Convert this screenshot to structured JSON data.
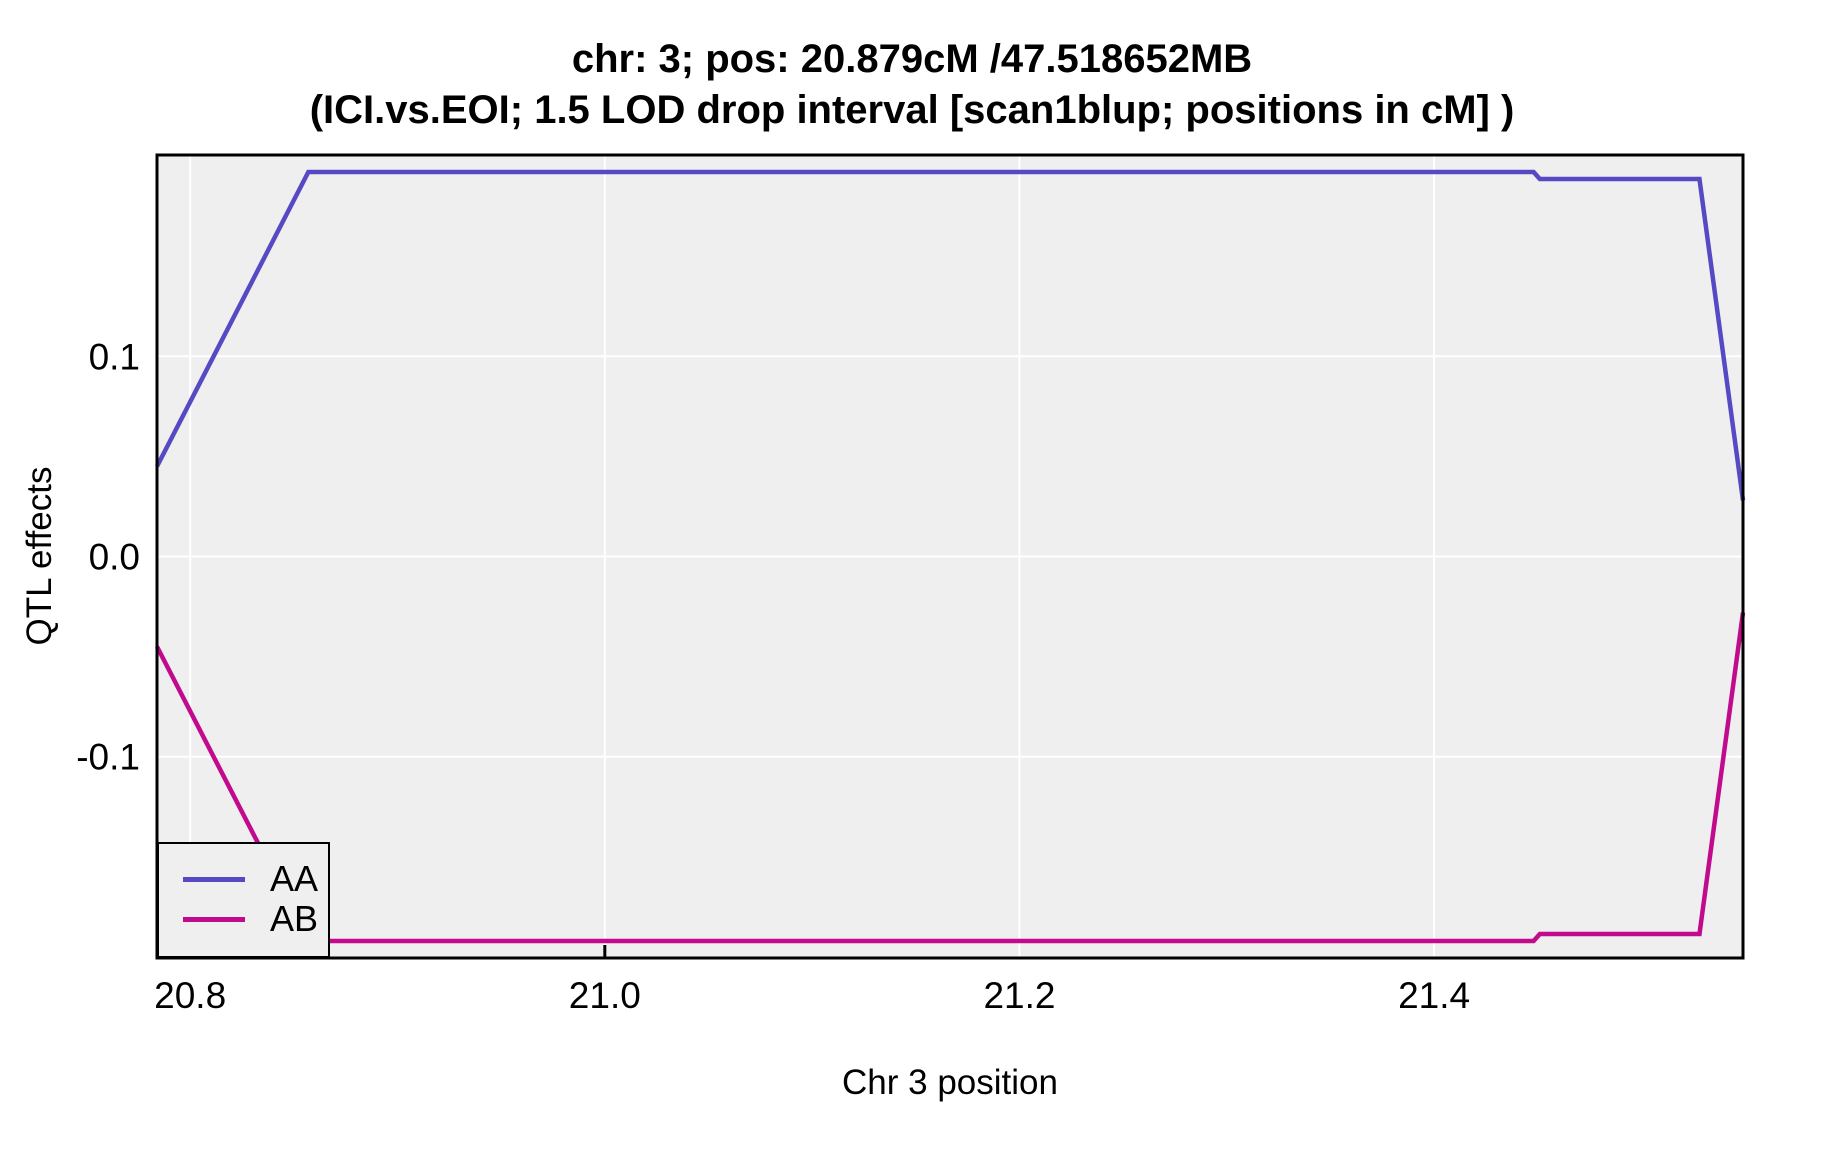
{
  "title": {
    "line1": "chr: 3; pos: 20.879cM /47.518652MB",
    "line2": "(ICI.vs.EOI; 1.5 LOD drop interval [scan1blup; positions in cM] )"
  },
  "axes": {
    "x_label": "Chr 3 position",
    "y_label": "QTL effects"
  },
  "legend": {
    "position": "bottom-left-inside",
    "items": [
      {
        "label": "AA",
        "color": "#564AC4"
      },
      {
        "label": "AB",
        "color": "#C10B8C"
      }
    ]
  },
  "colors": {
    "panel_background": "#EFEFEF",
    "gridline": "#FFFFFF",
    "panel_border": "#000000",
    "tick_text": "#000000",
    "series_AA": "#564AC4",
    "series_AB": "#C10B8C"
  },
  "chart_data": {
    "type": "line",
    "title": "chr: 3; pos: 20.879cM /47.518652MB (ICI.vs.EOI; 1.5 LOD drop interval [scan1blup; positions in cM] )",
    "xlabel": "Chr 3 position",
    "ylabel": "QTL effects",
    "xlim": [
      20.784,
      21.549
    ],
    "ylim": [
      -0.2005,
      0.2005
    ],
    "x_ticks": [
      20.8,
      21.0,
      21.2,
      21.4
    ],
    "x_tick_labels": [
      "20.8",
      "21.0",
      "21.2",
      "21.4"
    ],
    "y_ticks": [
      0.1,
      0.0,
      -0.1
    ],
    "y_tick_labels": [
      "0.1",
      "0.0",
      "-0.1"
    ],
    "grid": "major only, white on gray panel",
    "legend_position": "bottom-left inside panel",
    "marker_rug_x": [
      21.0
    ],
    "series": [
      {
        "name": "AA",
        "color": "#564AC4",
        "x": [
          20.784,
          20.857,
          21.448,
          21.451,
          21.528,
          21.549
        ],
        "y": [
          0.045,
          0.192,
          0.192,
          0.1885,
          0.1885,
          0.028
        ]
      },
      {
        "name": "AB",
        "color": "#C10B8C",
        "x": [
          20.784,
          20.857,
          21.448,
          21.451,
          21.528,
          21.549
        ],
        "y": [
          -0.045,
          -0.192,
          -0.192,
          -0.1885,
          -0.1885,
          -0.028
        ]
      }
    ]
  }
}
